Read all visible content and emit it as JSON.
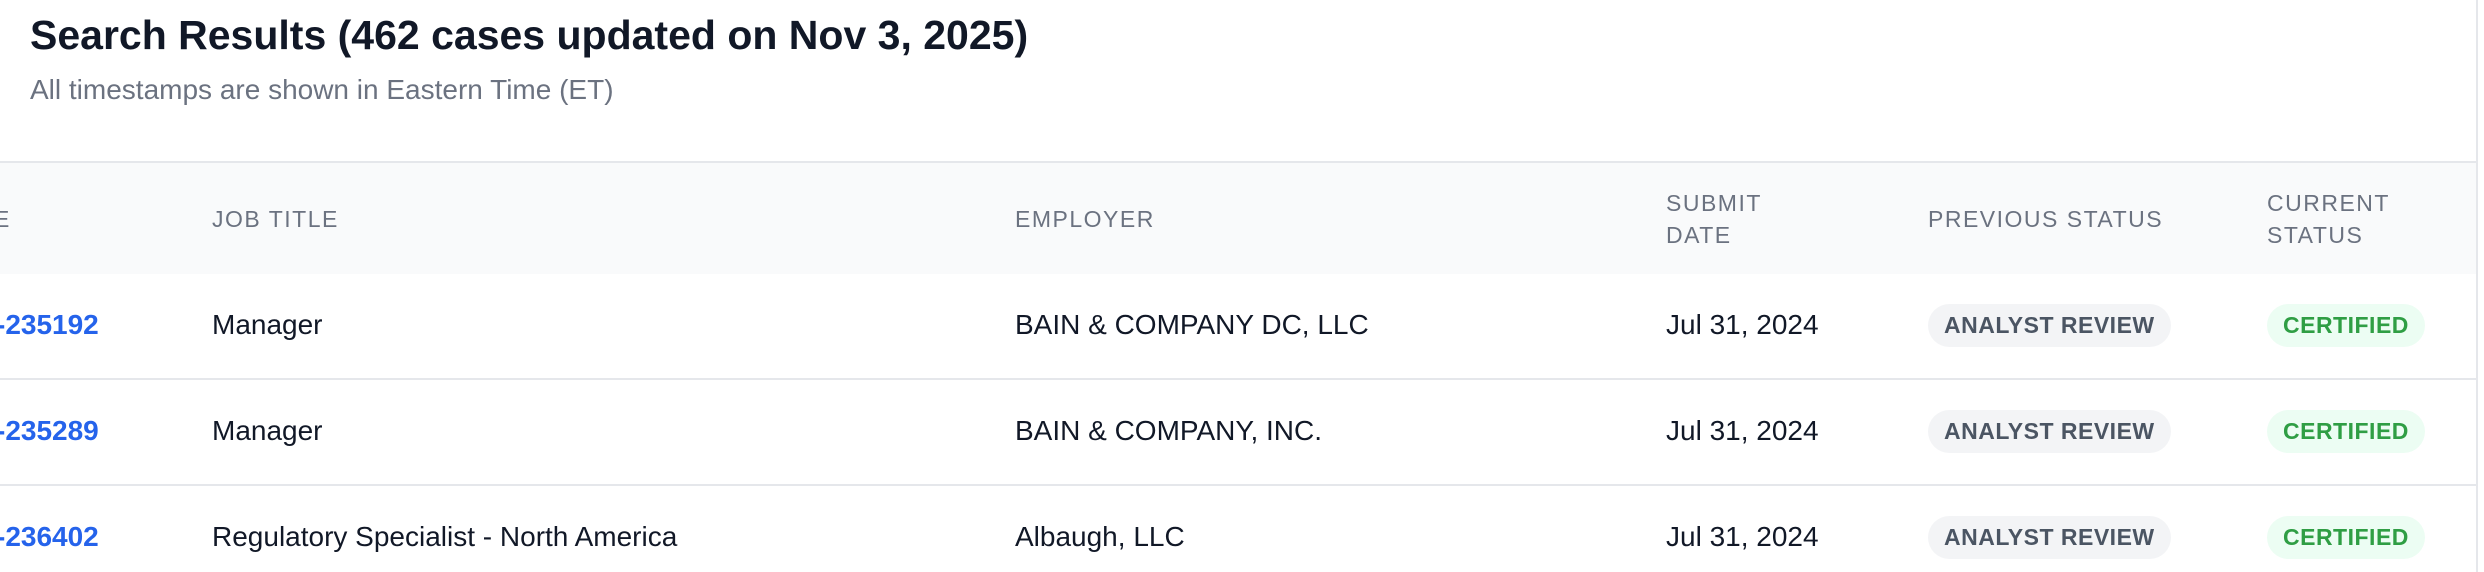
{
  "header": {
    "title": "Search Results (462 cases updated on Nov 3, 2025)",
    "subtitle": "All timestamps are shown in Eastern Time (ET)"
  },
  "table": {
    "columns": [
      "E",
      "JOB TITLE",
      "EMPLOYER",
      "SUBMIT DATE",
      "PREVIOUS STATUS",
      "CURRENT STATUS"
    ],
    "rows": [
      [
        "-235192",
        "Manager",
        "BAIN & COMPANY DC, LLC",
        "Jul 31, 2024",
        "ANALYST REVIEW",
        "CERTIFIED"
      ],
      [
        "-235289",
        "Manager",
        "BAIN & COMPANY, INC.",
        "Jul 31, 2024",
        "ANALYST REVIEW",
        "CERTIFIED"
      ],
      [
        "-236402",
        "Regulatory Specialist - North America",
        "Albaugh, LLC",
        "Jul 31, 2024",
        "ANALYST REVIEW",
        "CERTIFIED"
      ]
    ]
  }
}
